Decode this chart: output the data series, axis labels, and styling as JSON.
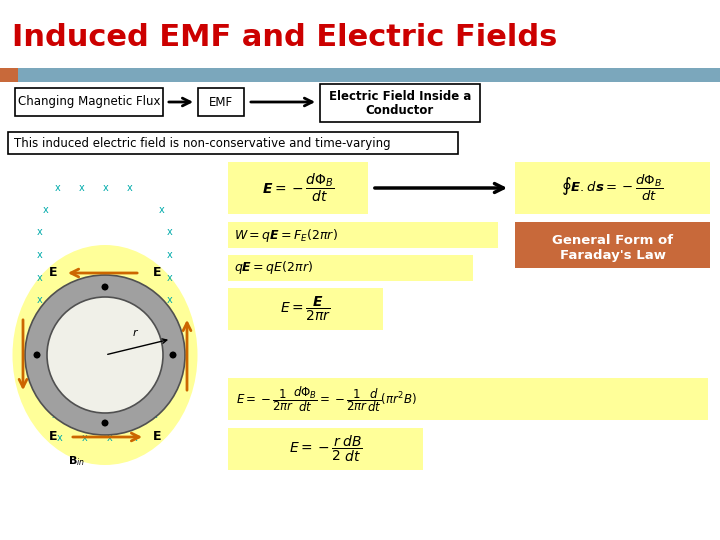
{
  "title": "Induced EMF and Electric Fields",
  "title_color": "#CC0000",
  "title_fontsize": 22,
  "header_bar_color": "#7BA7BC",
  "header_bar_left_color": "#C8693A",
  "box1_text": "Changing Magnetic Flux",
  "box2_text": "EMF",
  "box3_line1": "Electric Field Inside a",
  "box3_line2": "Conductor",
  "note_text": "This induced electric field is non-conservative and time-varying",
  "general_form_line1": "General Form of",
  "general_form_line2": "Faraday's Law",
  "general_form_bg": "#C8693A",
  "formula_bg": "#FFFF99",
  "bg_color": "#FFFFFF",
  "ring_outer_color": "#A8A8A8",
  "ring_inner_fill": "#E8E8E0",
  "ellipse_bg": "#FFFF99",
  "x_color": "#00AAAA",
  "arrow_orange": "#CC6600",
  "formula1": "$\\boldsymbol{E}=-\\dfrac{d\\Phi_B}{dt}$",
  "formula2": "$\\oint\\boldsymbol{E}.d\\boldsymbol{s}=-\\dfrac{d\\Phi_B}{dt}$",
  "formula3": "$W=q\\boldsymbol{E}=F_E(2\\pi r)$",
  "formula4": "$q\\boldsymbol{E}=qE(2\\pi r)$",
  "formula5": "$E=\\dfrac{\\boldsymbol{E}}{2\\pi r}$",
  "formula6": "$E=-\\dfrac{1}{2\\pi r}\\dfrac{d\\Phi_B}{dt}=-\\dfrac{1}{2\\pi r}\\dfrac{d}{dt}\\left(\\pi r^2B\\right)$",
  "formula7": "$E=-\\dfrac{r}{2}\\dfrac{dB}{dt}$"
}
